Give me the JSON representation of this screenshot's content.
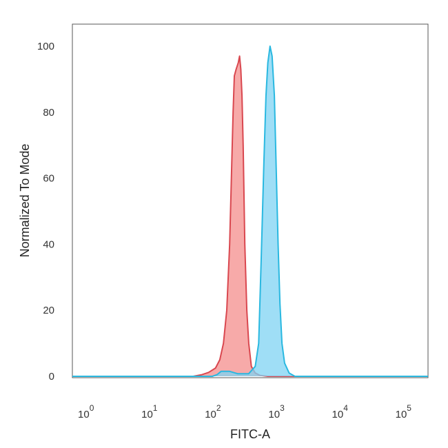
{
  "chart_data": {
    "type": "area",
    "xlabel": "FITC-A",
    "ylabel": "Normalized To Mode",
    "x_scale": "log",
    "xlim": [
      0.5,
      200000
    ],
    "ylim": [
      0,
      105
    ],
    "x_ticks": [
      {
        "value": 1,
        "base": "10",
        "exp": "0"
      },
      {
        "value": 10,
        "base": "10",
        "exp": "1"
      },
      {
        "value": 100,
        "base": "10",
        "exp": "2"
      },
      {
        "value": 1000,
        "base": "10",
        "exp": "3"
      },
      {
        "value": 10000,
        "base": "10",
        "exp": "4"
      },
      {
        "value": 100000,
        "base": "10",
        "exp": "5"
      }
    ],
    "y_ticks": [
      "0",
      "20",
      "40",
      "60",
      "80",
      "100"
    ],
    "grid": false,
    "legend": "none",
    "series": [
      {
        "color": "#d9474f",
        "fill": "#f48e8c",
        "points": [
          [
            0.5,
            0
          ],
          [
            40,
            0
          ],
          [
            55,
            0.5
          ],
          [
            70,
            1.2
          ],
          [
            90,
            2.5
          ],
          [
            105,
            5
          ],
          [
            120,
            10
          ],
          [
            135,
            20
          ],
          [
            150,
            40
          ],
          [
            160,
            60
          ],
          [
            170,
            80
          ],
          [
            178,
            91
          ],
          [
            190,
            93
          ],
          [
            205,
            95
          ],
          [
            215,
            97
          ],
          [
            225,
            93
          ],
          [
            235,
            85
          ],
          [
            245,
            70
          ],
          [
            260,
            40
          ],
          [
            280,
            20
          ],
          [
            300,
            10
          ],
          [
            330,
            3
          ],
          [
            380,
            1
          ],
          [
            450,
            0.3
          ],
          [
            600,
            0
          ],
          [
            200000,
            0
          ]
        ]
      },
      {
        "color": "#29b8e0",
        "fill": "#7fd3f3",
        "points": [
          [
            0.5,
            0
          ],
          [
            80,
            0
          ],
          [
            95,
            0.5
          ],
          [
            110,
            1.5
          ],
          [
            150,
            1.5
          ],
          [
            200,
            0.8
          ],
          [
            300,
            0.8
          ],
          [
            380,
            3
          ],
          [
            430,
            10
          ],
          [
            470,
            35
          ],
          [
            520,
            65
          ],
          [
            560,
            85
          ],
          [
            600,
            95
          ],
          [
            650,
            100
          ],
          [
            700,
            97
          ],
          [
            760,
            85
          ],
          [
            820,
            60
          ],
          [
            870,
            40
          ],
          [
            930,
            22
          ],
          [
            1000,
            10
          ],
          [
            1100,
            4
          ],
          [
            1300,
            1
          ],
          [
            1600,
            0
          ],
          [
            200000,
            0
          ]
        ]
      }
    ]
  }
}
